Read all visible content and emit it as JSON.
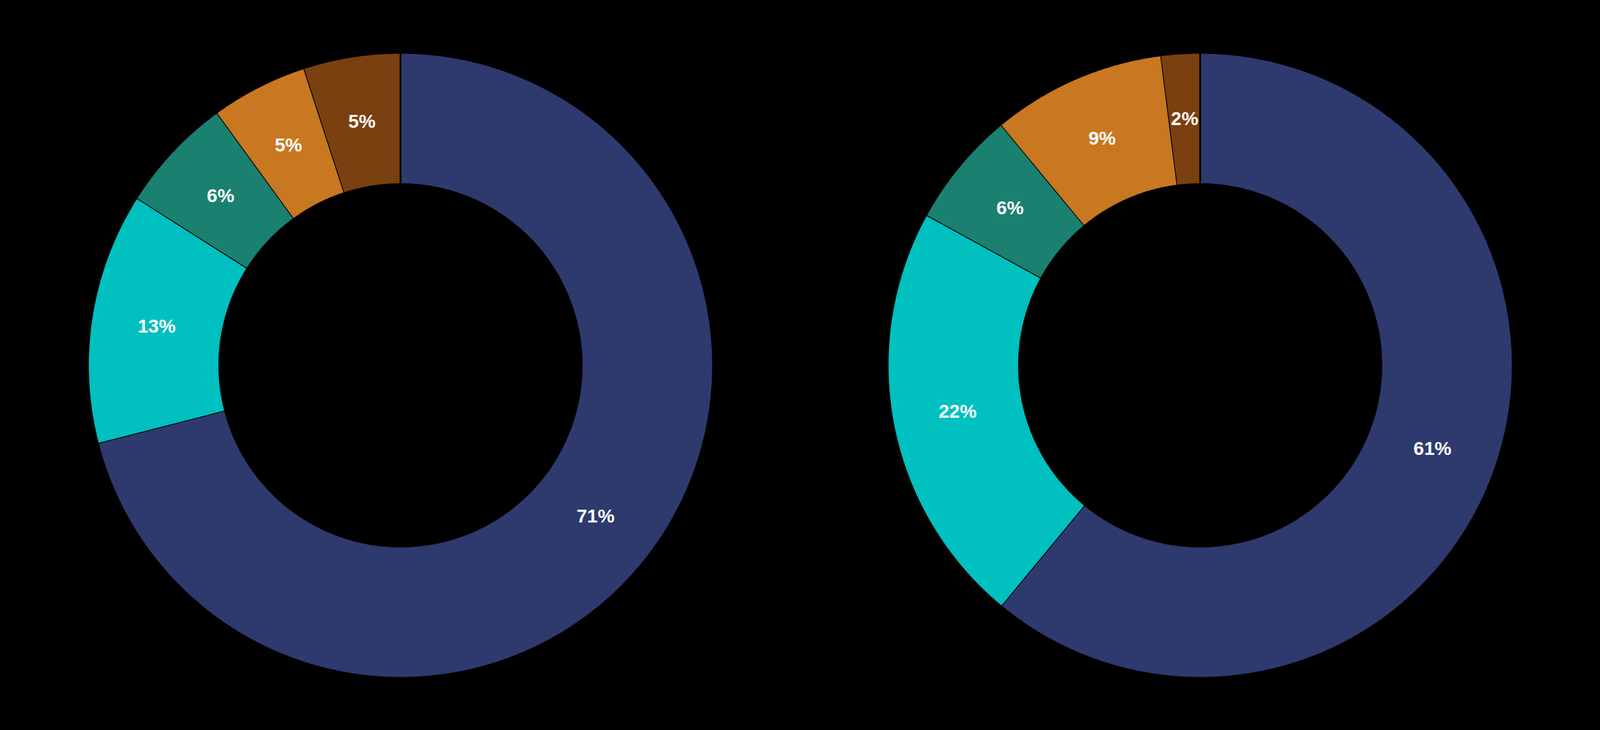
{
  "chart_data": [
    {
      "type": "pie",
      "values": [
        71,
        13,
        6,
        5,
        5
      ],
      "value_labels": [
        "71%",
        "13%",
        "6%",
        "5%",
        "5%"
      ],
      "colors": [
        "#2e3a6e",
        "#00c0c0",
        "#1a8070",
        "#c87820",
        "#7a4010"
      ],
      "data_labels": true
    },
    {
      "type": "pie",
      "values": [
        61,
        22,
        6,
        9,
        2
      ],
      "value_labels": [
        "61%",
        "22%",
        "6%",
        "9%",
        "2%"
      ],
      "colors": [
        "#2e3a6e",
        "#00c0c0",
        "#1a8070",
        "#c87820",
        "#7a4010"
      ],
      "data_labels": true
    }
  ]
}
